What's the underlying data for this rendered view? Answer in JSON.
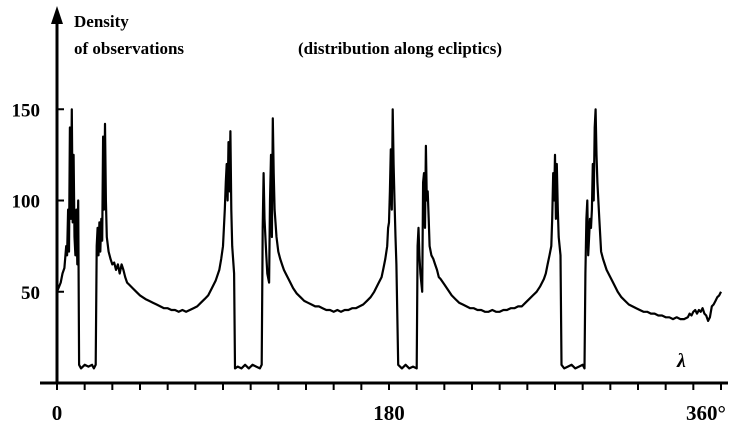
{
  "chart_data": {
    "type": "line",
    "title": "(distribution along ecliptics)",
    "ylabel": [
      "Density",
      "of observations"
    ],
    "xlabel": "λ",
    "xlim": [
      0,
      360
    ],
    "ylim": [
      0,
      180
    ],
    "x_ticks": [
      {
        "value": 0,
        "label": "0"
      },
      {
        "value": 180,
        "label": "180"
      },
      {
        "value": 360,
        "label": "360°"
      }
    ],
    "y_ticks": [
      {
        "value": 50,
        "label": "50"
      },
      {
        "value": 100,
        "label": "100"
      },
      {
        "value": 150,
        "label": "150"
      }
    ],
    "grid": false,
    "legend": "none",
    "line_color": "#000000",
    "series": [
      {
        "values": [
          [
            0,
            50
          ],
          [
            2,
            55
          ],
          [
            3,
            60
          ],
          [
            4,
            63
          ],
          [
            5,
            75
          ],
          [
            5.5,
            70
          ],
          [
            6,
            95
          ],
          [
            6.5,
            72
          ],
          [
            7,
            140
          ],
          [
            7.5,
            90
          ],
          [
            8,
            150
          ],
          [
            8.5,
            88
          ],
          [
            9,
            125
          ],
          [
            9.5,
            80
          ],
          [
            10,
            70
          ],
          [
            10.5,
            95
          ],
          [
            11,
            65
          ],
          [
            11.5,
            100
          ],
          [
            12,
            10
          ],
          [
            13,
            8
          ],
          [
            15,
            10
          ],
          [
            17,
            9
          ],
          [
            19,
            10
          ],
          [
            20,
            8
          ],
          [
            21,
            10
          ],
          [
            21.5,
            75
          ],
          [
            22,
            85
          ],
          [
            22.5,
            70
          ],
          [
            23,
            88
          ],
          [
            23.5,
            72
          ],
          [
            24,
            90
          ],
          [
            24.5,
            78
          ],
          [
            25,
            135
          ],
          [
            25.5,
            95
          ],
          [
            26,
            142
          ],
          [
            26.5,
            100
          ],
          [
            27,
            80
          ],
          [
            28,
            72
          ],
          [
            29,
            68
          ],
          [
            30,
            65
          ],
          [
            31,
            66
          ],
          [
            32,
            62
          ],
          [
            33,
            65
          ],
          [
            34,
            60
          ],
          [
            35,
            65
          ],
          [
            36,
            62
          ],
          [
            37,
            58
          ],
          [
            38,
            55
          ],
          [
            39,
            54
          ],
          [
            41,
            52
          ],
          [
            43,
            50
          ],
          [
            45,
            48
          ],
          [
            48,
            46
          ],
          [
            50,
            45
          ],
          [
            52,
            44
          ],
          [
            54,
            43
          ],
          [
            56,
            42
          ],
          [
            58,
            41
          ],
          [
            60,
            41
          ],
          [
            62,
            40
          ],
          [
            64,
            40
          ],
          [
            66,
            39
          ],
          [
            68,
            40
          ],
          [
            70,
            39
          ],
          [
            72,
            40
          ],
          [
            74,
            41
          ],
          [
            76,
            42
          ],
          [
            78,
            44
          ],
          [
            80,
            46
          ],
          [
            82,
            48
          ],
          [
            84,
            52
          ],
          [
            86,
            56
          ],
          [
            88,
            62
          ],
          [
            89,
            68
          ],
          [
            90,
            75
          ],
          [
            90.5,
            85
          ],
          [
            91,
            95
          ],
          [
            91.5,
            110
          ],
          [
            92,
            120
          ],
          [
            92.5,
            100
          ],
          [
            93,
            132
          ],
          [
            93.5,
            105
          ],
          [
            94,
            138
          ],
          [
            94.5,
            95
          ],
          [
            95,
            75
          ],
          [
            96,
            60
          ],
          [
            96.5,
            8
          ],
          [
            98,
            9
          ],
          [
            100,
            8
          ],
          [
            102,
            10
          ],
          [
            104,
            8
          ],
          [
            106,
            10
          ],
          [
            108,
            9
          ],
          [
            110,
            8
          ],
          [
            111,
            10
          ],
          [
            111.5,
            85
          ],
          [
            112,
            115
          ],
          [
            112.5,
            90
          ],
          [
            113,
            80
          ],
          [
            113.5,
            70
          ],
          [
            114,
            60
          ],
          [
            115,
            55
          ],
          [
            115.5,
            100
          ],
          [
            116,
            125
          ],
          [
            116.5,
            80
          ],
          [
            117,
            145
          ],
          [
            117.5,
            115
          ],
          [
            118,
            95
          ],
          [
            119,
            80
          ],
          [
            120,
            72
          ],
          [
            121,
            68
          ],
          [
            122,
            65
          ],
          [
            123,
            62
          ],
          [
            124,
            60
          ],
          [
            126,
            56
          ],
          [
            128,
            52
          ],
          [
            130,
            49
          ],
          [
            132,
            47
          ],
          [
            134,
            45
          ],
          [
            136,
            44
          ],
          [
            138,
            43
          ],
          [
            140,
            42
          ],
          [
            142,
            42
          ],
          [
            144,
            41
          ],
          [
            146,
            40
          ],
          [
            148,
            40
          ],
          [
            150,
            39
          ],
          [
            152,
            40
          ],
          [
            154,
            39
          ],
          [
            156,
            40
          ],
          [
            158,
            40
          ],
          [
            160,
            41
          ],
          [
            162,
            41
          ],
          [
            164,
            42
          ],
          [
            166,
            43
          ],
          [
            168,
            45
          ],
          [
            170,
            47
          ],
          [
            172,
            50
          ],
          [
            174,
            54
          ],
          [
            176,
            58
          ],
          [
            177,
            63
          ],
          [
            178,
            68
          ],
          [
            179,
            75
          ],
          [
            179.5,
            85
          ],
          [
            180,
            88
          ],
          [
            180.5,
            105
          ],
          [
            181,
            128
          ],
          [
            181.5,
            95
          ],
          [
            182,
            150
          ],
          [
            182.5,
            120
          ],
          [
            183,
            100
          ],
          [
            183.5,
            80
          ],
          [
            184,
            65
          ],
          [
            185,
            10
          ],
          [
            187,
            8
          ],
          [
            189,
            10
          ],
          [
            191,
            8
          ],
          [
            193,
            9
          ],
          [
            195,
            8
          ],
          [
            195.5,
            75
          ],
          [
            196,
            85
          ],
          [
            196.5,
            70
          ],
          [
            197,
            60
          ],
          [
            197.5,
            55
          ],
          [
            198,
            50
          ],
          [
            198.5,
            110
          ],
          [
            199,
            115
          ],
          [
            199.5,
            85
          ],
          [
            200,
            130
          ],
          [
            200.5,
            100
          ],
          [
            201,
            105
          ],
          [
            201.5,
            90
          ],
          [
            202,
            75
          ],
          [
            203,
            70
          ],
          [
            204,
            68
          ],
          [
            205,
            65
          ],
          [
            206,
            62
          ],
          [
            207,
            58
          ],
          [
            208,
            57
          ],
          [
            210,
            54
          ],
          [
            212,
            51
          ],
          [
            214,
            48
          ],
          [
            216,
            46
          ],
          [
            218,
            44
          ],
          [
            220,
            43
          ],
          [
            222,
            42
          ],
          [
            224,
            41
          ],
          [
            226,
            41
          ],
          [
            228,
            40
          ],
          [
            230,
            40
          ],
          [
            232,
            39
          ],
          [
            234,
            39
          ],
          [
            236,
            40
          ],
          [
            238,
            39
          ],
          [
            240,
            39
          ],
          [
            242,
            40
          ],
          [
            244,
            40
          ],
          [
            246,
            41
          ],
          [
            248,
            41
          ],
          [
            250,
            42
          ],
          [
            252,
            42
          ],
          [
            254,
            44
          ],
          [
            256,
            46
          ],
          [
            258,
            48
          ],
          [
            260,
            50
          ],
          [
            262,
            53
          ],
          [
            264,
            57
          ],
          [
            265,
            60
          ],
          [
            266,
            65
          ],
          [
            267,
            70
          ],
          [
            268,
            75
          ],
          [
            268.5,
            90
          ],
          [
            269,
            115
          ],
          [
            269.5,
            100
          ],
          [
            270,
            125
          ],
          [
            270.5,
            90
          ],
          [
            271,
            120
          ],
          [
            271.5,
            95
          ],
          [
            272,
            80
          ],
          [
            273,
            70
          ],
          [
            273.5,
            10
          ],
          [
            275,
            8
          ],
          [
            277,
            9
          ],
          [
            279,
            10
          ],
          [
            281,
            8
          ],
          [
            283,
            9
          ],
          [
            285,
            10
          ],
          [
            286,
            8
          ],
          [
            286.5,
            60
          ],
          [
            287,
            90
          ],
          [
            287.5,
            100
          ],
          [
            288,
            70
          ],
          [
            288.5,
            80
          ],
          [
            289,
            90
          ],
          [
            289.5,
            85
          ],
          [
            290,
            95
          ],
          [
            290.5,
            120
          ],
          [
            291,
            100
          ],
          [
            291.5,
            140
          ],
          [
            292,
            150
          ],
          [
            292.5,
            125
          ],
          [
            293,
            110
          ],
          [
            294,
            90
          ],
          [
            295,
            72
          ],
          [
            296,
            68
          ],
          [
            297,
            65
          ],
          [
            298,
            62
          ],
          [
            300,
            58
          ],
          [
            302,
            54
          ],
          [
            304,
            50
          ],
          [
            306,
            47
          ],
          [
            308,
            45
          ],
          [
            310,
            43
          ],
          [
            312,
            42
          ],
          [
            314,
            41
          ],
          [
            316,
            40
          ],
          [
            318,
            39
          ],
          [
            320,
            39
          ],
          [
            322,
            38
          ],
          [
            324,
            38
          ],
          [
            326,
            37
          ],
          [
            328,
            37
          ],
          [
            330,
            36
          ],
          [
            332,
            36
          ],
          [
            334,
            35
          ],
          [
            336,
            36
          ],
          [
            338,
            35
          ],
          [
            340,
            35
          ],
          [
            342,
            36
          ],
          [
            343,
            38
          ],
          [
            344,
            37
          ],
          [
            345,
            39
          ],
          [
            346,
            40
          ],
          [
            347,
            38
          ],
          [
            348,
            40
          ],
          [
            349,
            39
          ],
          [
            350,
            41
          ],
          [
            351,
            38
          ],
          [
            352,
            37
          ],
          [
            353,
            34
          ],
          [
            354,
            36
          ],
          [
            355,
            42
          ],
          [
            356,
            43
          ],
          [
            357,
            45
          ],
          [
            358,
            47
          ],
          [
            359,
            48
          ],
          [
            360,
            50
          ]
        ]
      }
    ]
  }
}
